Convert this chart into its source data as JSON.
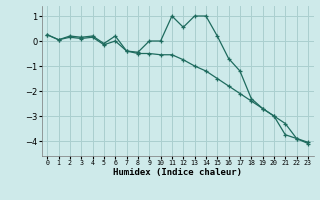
{
  "xlabel": "Humidex (Indice chaleur)",
  "bg_color": "#ceeaea",
  "grid_color": "#aacfcf",
  "line_color": "#1e6b5e",
  "xlim": [
    -0.5,
    23.5
  ],
  "ylim": [
    -4.6,
    1.4
  ],
  "yticks": [
    -4,
    -3,
    -2,
    -1,
    0,
    1
  ],
  "xticks": [
    0,
    1,
    2,
    3,
    4,
    5,
    6,
    7,
    8,
    9,
    10,
    11,
    12,
    13,
    14,
    15,
    16,
    17,
    18,
    19,
    20,
    21,
    22,
    23
  ],
  "line1_x": [
    0,
    1,
    2,
    3,
    4,
    5,
    6,
    7,
    8,
    9,
    10,
    11,
    12,
    13,
    14,
    15,
    16,
    17,
    18,
    19,
    20,
    21,
    22,
    23
  ],
  "line1_y": [
    0.25,
    0.05,
    0.2,
    0.15,
    0.2,
    -0.1,
    0.2,
    -0.4,
    -0.45,
    0.0,
    0.0,
    1.0,
    0.55,
    1.0,
    1.0,
    0.2,
    -0.7,
    -1.2,
    -2.3,
    -2.7,
    -3.0,
    -3.75,
    -3.9,
    -4.1
  ],
  "line2_x": [
    0,
    1,
    2,
    3,
    4,
    5,
    6,
    7,
    8,
    9,
    10,
    11,
    12,
    13,
    14,
    15,
    16,
    17,
    18,
    19,
    20,
    21,
    22,
    23
  ],
  "line2_y": [
    0.25,
    0.05,
    0.15,
    0.1,
    0.15,
    -0.15,
    0.0,
    -0.4,
    -0.5,
    -0.5,
    -0.55,
    -0.55,
    -0.75,
    -1.0,
    -1.2,
    -1.5,
    -1.8,
    -2.1,
    -2.4,
    -2.7,
    -3.0,
    -3.3,
    -3.9,
    -4.05
  ]
}
